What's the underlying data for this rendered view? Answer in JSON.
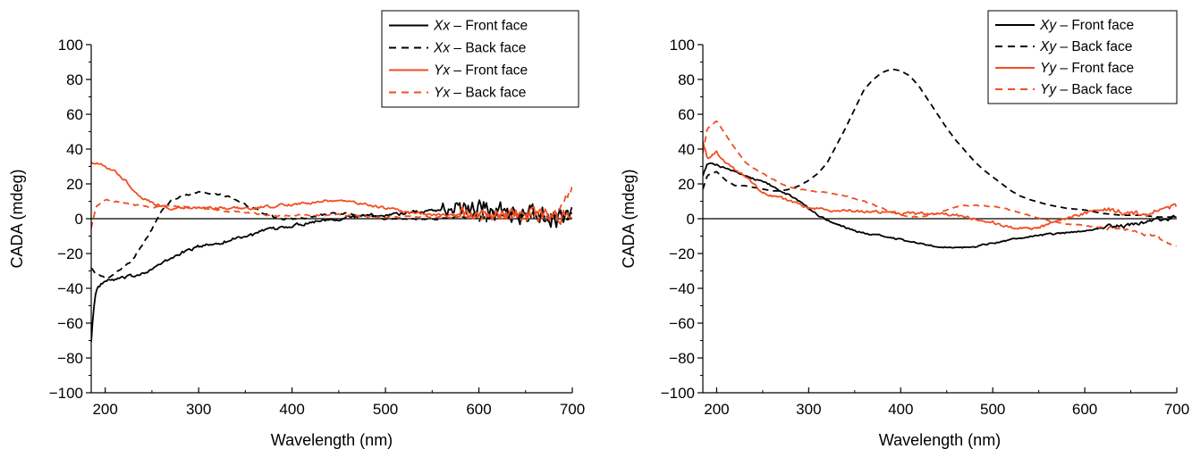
{
  "chart_data": [
    {
      "type": "line",
      "xlabel": "Wavelength (nm)",
      "ylabel": "CADA (mdeg)",
      "xlim": [
        185,
        700
      ],
      "ylim": [
        -100,
        100
      ],
      "xticks": [
        200,
        300,
        400,
        500,
        600,
        700
      ],
      "yticks": [
        100,
        80,
        60,
        40,
        20,
        0,
        -20,
        -40,
        -60,
        -80,
        -100
      ],
      "ytick_labels": [
        "100",
        "80",
        "60",
        "40",
        "20",
        "0",
        "−20",
        "−40",
        "−60",
        "−80",
        "−100"
      ],
      "grid": false,
      "legend_position": "top-right",
      "series": [
        {
          "name": "Xx – Front face",
          "label_italic": "Xx",
          "label_rest": " – Front face",
          "color": "#000000",
          "dash": "solid",
          "x": [
            185,
            187,
            190,
            195,
            200,
            210,
            220,
            230,
            240,
            250,
            260,
            270,
            280,
            290,
            300,
            310,
            320,
            330,
            340,
            350,
            360,
            370,
            380,
            390,
            400,
            410,
            420,
            430,
            440,
            450,
            460,
            470,
            480,
            490,
            500,
            510,
            520,
            530,
            540,
            550,
            560,
            570,
            580,
            590,
            600,
            610,
            620,
            630,
            640,
            650,
            660,
            670,
            680,
            690,
            700
          ],
          "y": [
            -70,
            -55,
            -42,
            -38,
            -36,
            -35,
            -34,
            -33,
            -31,
            -29,
            -26,
            -23,
            -20,
            -18,
            -16,
            -15,
            -14,
            -13,
            -11,
            -10,
            -9,
            -7,
            -6,
            -5,
            -4,
            -3,
            -2,
            -1,
            0,
            0,
            1,
            1,
            2,
            2,
            2,
            3,
            3,
            4,
            4,
            5,
            5,
            5,
            6,
            6,
            7,
            6,
            5,
            4,
            3,
            2,
            2,
            1,
            0,
            0,
            0
          ],
          "noise_base": 1.5,
          "noise_extra": 7,
          "noise_from": 560
        },
        {
          "name": "Xx – Back face",
          "label_italic": "Xx",
          "label_rest": " – Back face",
          "color": "#000000",
          "dash": "dashed",
          "x": [
            185,
            190,
            200,
            210,
            220,
            230,
            240,
            250,
            260,
            270,
            280,
            290,
            300,
            310,
            320,
            330,
            340,
            350,
            360,
            370,
            380,
            390,
            400,
            410,
            420,
            430,
            440,
            450,
            460,
            470,
            480,
            490,
            500,
            520,
            540,
            560,
            580,
            600,
            620,
            640,
            660,
            680,
            700
          ],
          "y": [
            -28,
            -32,
            -34,
            -32,
            -28,
            -23,
            -15,
            -6,
            4,
            10,
            13,
            14,
            15,
            15,
            14,
            13,
            11,
            8,
            6,
            3,
            1,
            0,
            0,
            0,
            1,
            2,
            3,
            3,
            3,
            2,
            2,
            1,
            0,
            0,
            0,
            0,
            1,
            1,
            1,
            1,
            1,
            2,
            3
          ],
          "noise_base": 0.8,
          "noise_extra": 5,
          "noise_from": 590
        },
        {
          "name": "Yx – Front face",
          "label_italic": "Yx",
          "label_rest": " – Front face",
          "color": "#F04E23",
          "dash": "solid",
          "x": [
            185,
            190,
            200,
            210,
            220,
            230,
            240,
            250,
            260,
            270,
            280,
            290,
            300,
            310,
            320,
            330,
            340,
            350,
            360,
            370,
            380,
            390,
            400,
            410,
            420,
            430,
            440,
            450,
            460,
            470,
            480,
            490,
            500,
            520,
            540,
            560,
            580,
            600,
            620,
            640,
            660,
            680,
            700
          ],
          "y": [
            33,
            32,
            30,
            27,
            23,
            17,
            12,
            9,
            7,
            6,
            6,
            6,
            6,
            6,
            6,
            6,
            6,
            6,
            6,
            7,
            7,
            8,
            8,
            9,
            9,
            10,
            10,
            10,
            10,
            9,
            8,
            7,
            6,
            4,
            3,
            2,
            2,
            2,
            2,
            2,
            2,
            2,
            2
          ],
          "noise_base": 1.2,
          "noise_extra": 5,
          "noise_from": 580
        },
        {
          "name": "Yx – Back face",
          "label_italic": "Yx",
          "label_rest": " – Back face",
          "color": "#F04E23",
          "dash": "dashed",
          "x": [
            185,
            190,
            200,
            210,
            220,
            230,
            240,
            250,
            260,
            270,
            280,
            290,
            300,
            320,
            340,
            360,
            380,
            400,
            420,
            440,
            460,
            480,
            500,
            520,
            540,
            560,
            580,
            600,
            620,
            640,
            660,
            680,
            700
          ],
          "y": [
            -5,
            7,
            11,
            10,
            9,
            8,
            7,
            6,
            7,
            7,
            7,
            7,
            6,
            5,
            4,
            3,
            2,
            2,
            2,
            2,
            2,
            1,
            1,
            1,
            1,
            1,
            1,
            1,
            1,
            1,
            1,
            1,
            18
          ],
          "noise_base": 0.8,
          "noise_extra": 4,
          "noise_from": 600
        }
      ]
    },
    {
      "type": "line",
      "xlabel": "Wavelength (nm)",
      "ylabel": "CADA (mdeg)",
      "xlim": [
        185,
        700
      ],
      "ylim": [
        -100,
        100
      ],
      "xticks": [
        200,
        300,
        400,
        500,
        600,
        700
      ],
      "yticks": [
        100,
        80,
        60,
        40,
        20,
        0,
        -20,
        -40,
        -60,
        -80,
        -100
      ],
      "ytick_labels": [
        "100",
        "80",
        "60",
        "40",
        "20",
        "0",
        "−20",
        "−40",
        "−60",
        "−80",
        "−100"
      ],
      "grid": false,
      "legend_position": "top-right",
      "series": [
        {
          "name": "Xy – Front face",
          "label_italic": "Xy",
          "label_rest": " – Front face",
          "color": "#000000",
          "dash": "solid",
          "x": [
            185,
            190,
            200,
            210,
            220,
            230,
            240,
            250,
            260,
            270,
            280,
            290,
            300,
            310,
            320,
            330,
            340,
            350,
            360,
            370,
            380,
            390,
            400,
            420,
            440,
            460,
            480,
            500,
            520,
            540,
            560,
            580,
            600,
            620,
            640,
            660,
            680,
            700
          ],
          "y": [
            25,
            32,
            31,
            29,
            27,
            25,
            23,
            21,
            19,
            16,
            13,
            10,
            6,
            2,
            -1,
            -3,
            -5,
            -7,
            -8,
            -9,
            -10,
            -11,
            -12,
            -14,
            -16,
            -17,
            -16,
            -14,
            -12,
            -10,
            -9,
            -8,
            -7,
            -5,
            -4,
            -3,
            -1,
            1
          ],
          "noise_base": 0.8,
          "noise_extra": 1.2,
          "noise_from": 620
        },
        {
          "name": "Xy – Back face",
          "label_italic": "Xy",
          "label_rest": " – Back face",
          "color": "#000000",
          "dash": "dashed",
          "x": [
            185,
            190,
            200,
            210,
            220,
            230,
            240,
            250,
            260,
            270,
            280,
            290,
            300,
            310,
            320,
            330,
            340,
            350,
            360,
            370,
            380,
            390,
            400,
            410,
            420,
            430,
            440,
            450,
            460,
            470,
            480,
            490,
            500,
            510,
            520,
            530,
            540,
            560,
            580,
            600,
            620,
            640,
            660,
            680,
            700
          ],
          "y": [
            17,
            25,
            27,
            22,
            19,
            19,
            18,
            17,
            16,
            16,
            17,
            19,
            22,
            26,
            32,
            42,
            52,
            63,
            74,
            80,
            84,
            86,
            85,
            82,
            76,
            68,
            60,
            52,
            45,
            39,
            33,
            28,
            24,
            20,
            16,
            13,
            11,
            8,
            6,
            5,
            3,
            2,
            2,
            1,
            1
          ],
          "noise_base": 0,
          "noise_extra": 0,
          "noise_from": 700
        },
        {
          "name": "Yy – Front face",
          "label_italic": "Yy",
          "label_rest": " – Front face",
          "color": "#F04E23",
          "dash": "solid",
          "x": [
            185,
            190,
            200,
            210,
            220,
            230,
            240,
            250,
            260,
            270,
            280,
            290,
            300,
            320,
            340,
            360,
            380,
            400,
            420,
            440,
            460,
            480,
            500,
            520,
            540,
            560,
            580,
            600,
            620,
            640,
            660,
            680,
            700
          ],
          "y": [
            45,
            35,
            38,
            32,
            28,
            25,
            20,
            15,
            13,
            12,
            10,
            8,
            6,
            5,
            5,
            4,
            4,
            3,
            3,
            3,
            2,
            0,
            -2,
            -5,
            -6,
            -4,
            0,
            3,
            5,
            4,
            3,
            4,
            7
          ],
          "noise_base": 1.3,
          "noise_extra": 1.5,
          "noise_from": 620
        },
        {
          "name": "Yy – Back face",
          "label_italic": "Yy",
          "label_rest": " – Back face",
          "color": "#F04E23",
          "dash": "dashed",
          "x": [
            185,
            190,
            200,
            210,
            220,
            230,
            240,
            250,
            260,
            270,
            280,
            290,
            300,
            320,
            340,
            360,
            380,
            400,
            420,
            440,
            460,
            480,
            500,
            520,
            540,
            560,
            580,
            600,
            620,
            640,
            660,
            680,
            700
          ],
          "y": [
            38,
            52,
            56,
            48,
            40,
            33,
            29,
            26,
            23,
            20,
            18,
            17,
            16,
            15,
            13,
            10,
            6,
            2,
            1,
            3,
            7,
            8,
            7,
            5,
            2,
            -1,
            -3,
            -4,
            -5,
            -6,
            -8,
            -11,
            -16
          ],
          "noise_base": 0.5,
          "noise_extra": 1,
          "noise_from": 620
        }
      ]
    }
  ]
}
